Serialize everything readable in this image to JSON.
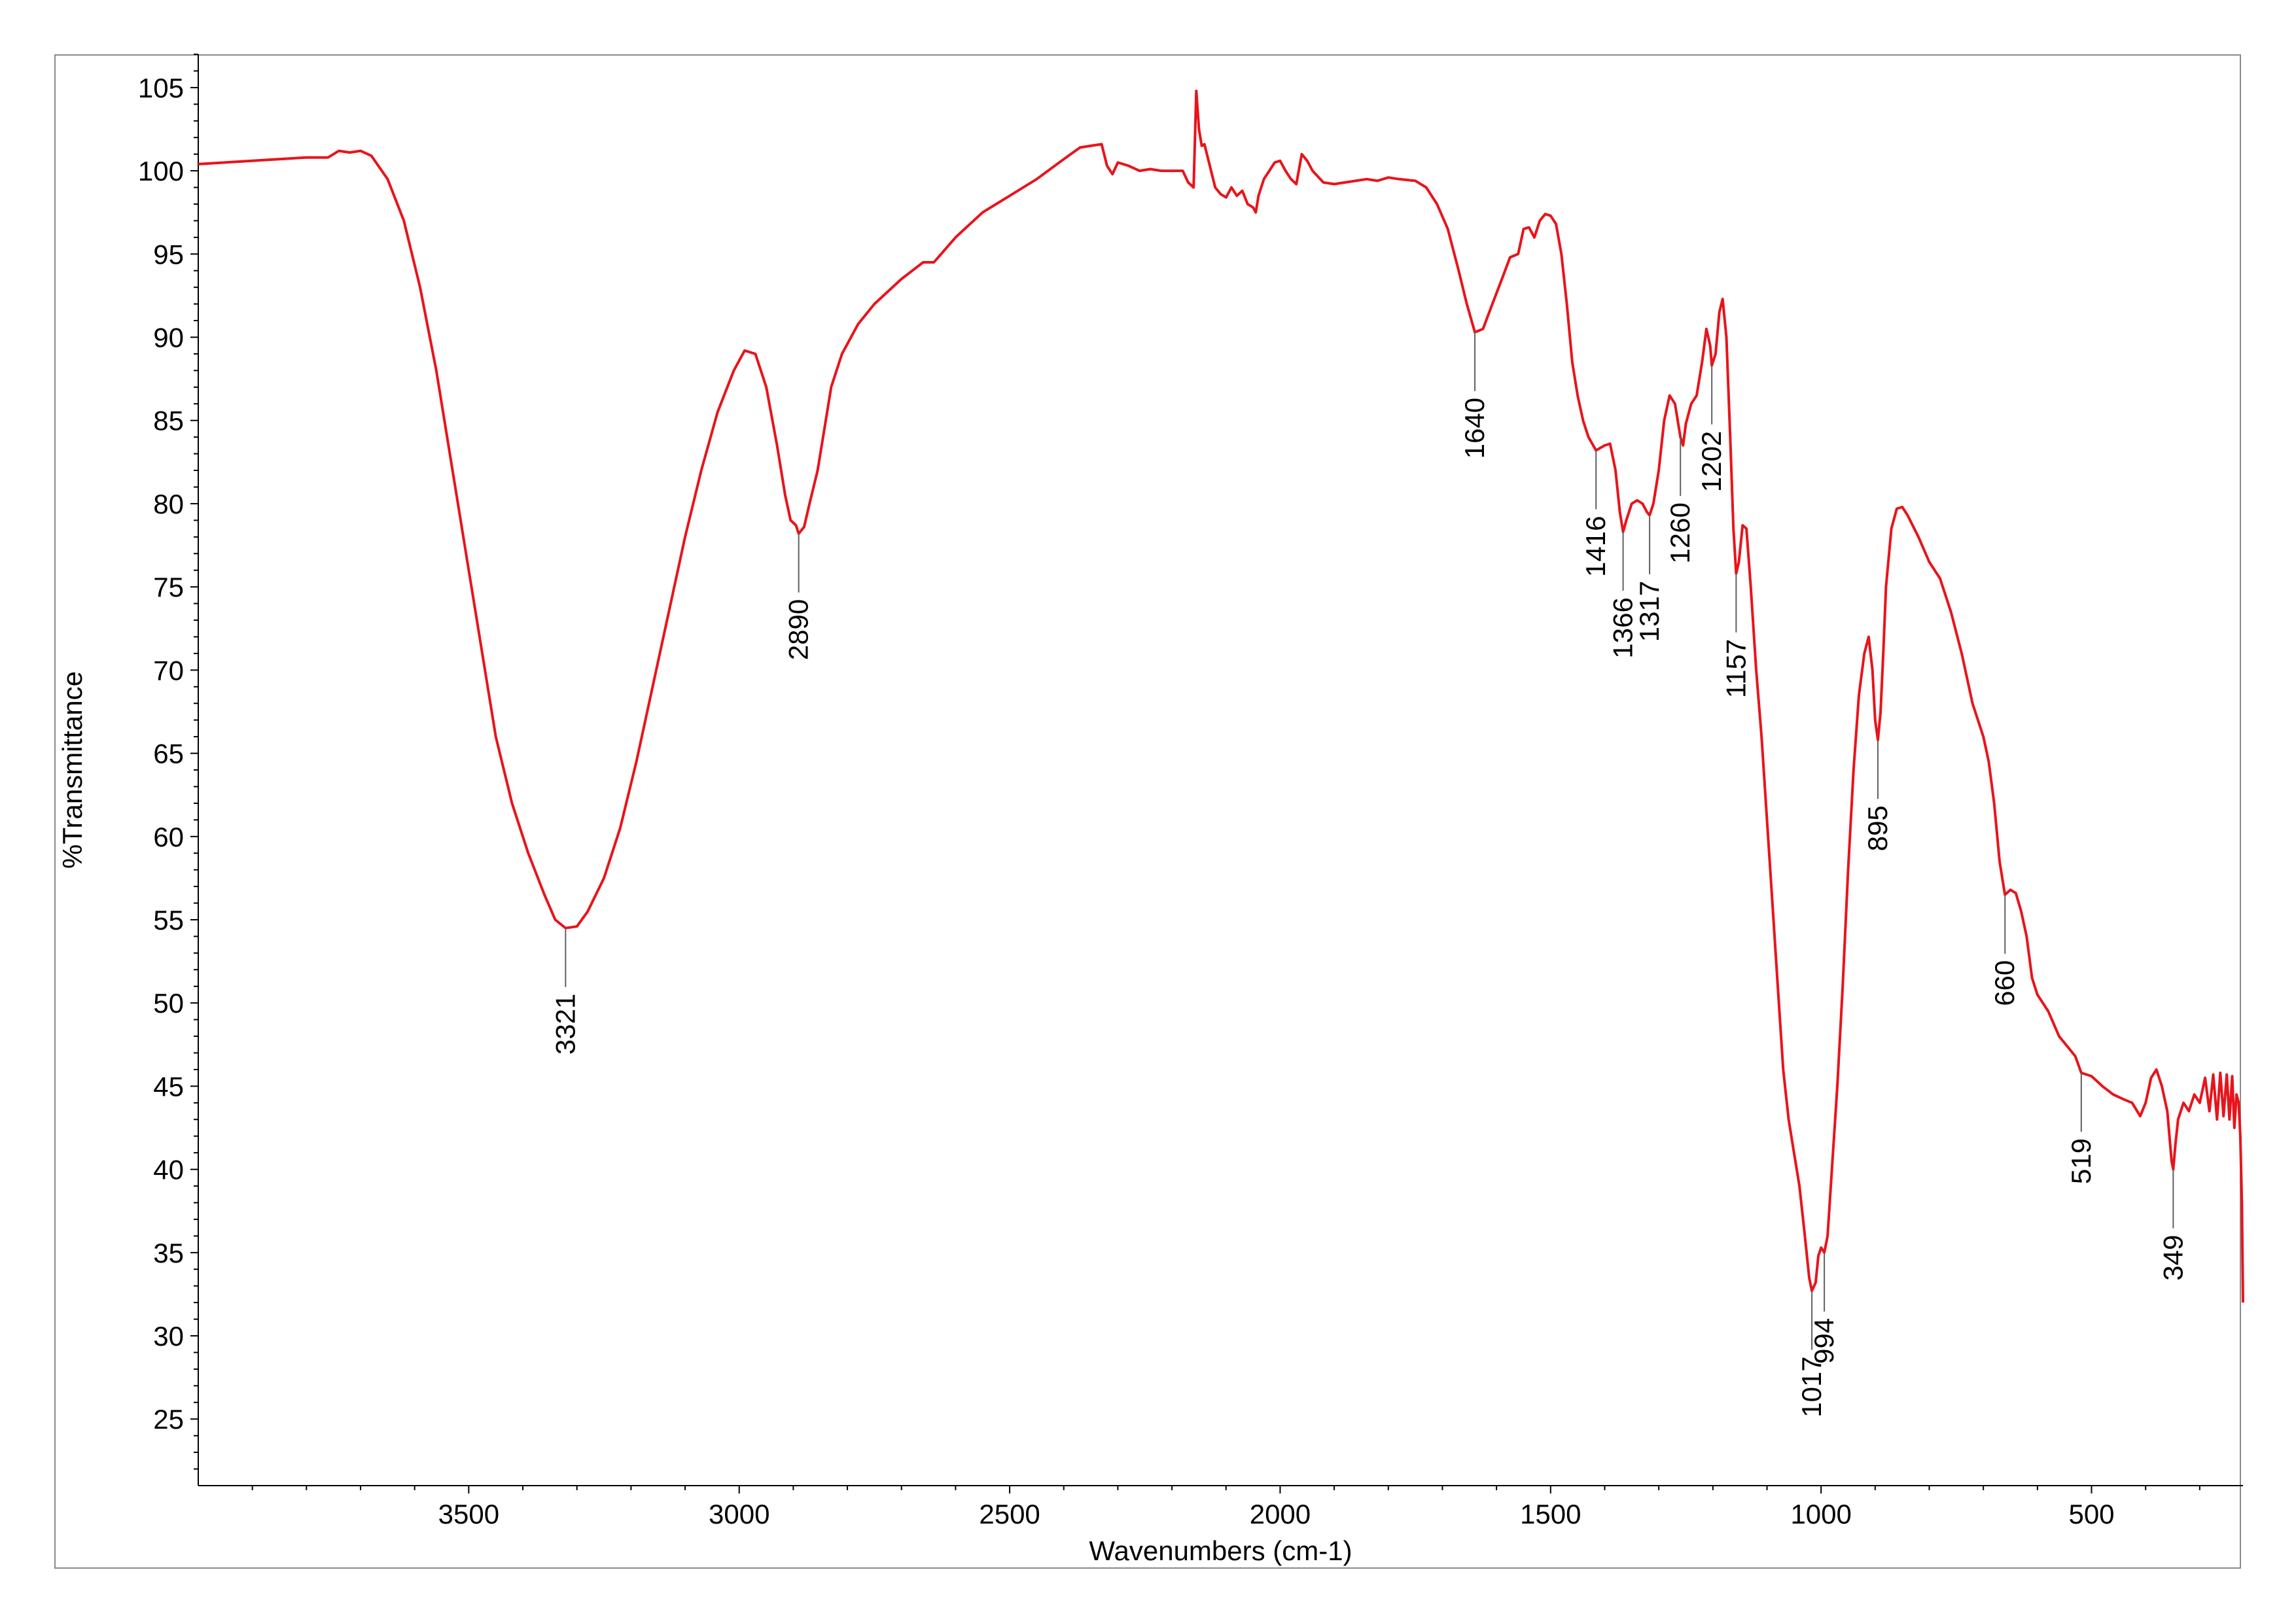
{
  "chart_data": {
    "type": "line",
    "title": "",
    "xlabel": "Wavenumbers (cm-1)",
    "ylabel": "%Transmittance",
    "xlim": [
      4000,
      220
    ],
    "ylim": [
      21,
      107
    ],
    "x_reversed": true,
    "grid": false,
    "x_ticks": [
      3500,
      3000,
      2500,
      2000,
      1500,
      1000,
      500
    ],
    "y_ticks": [
      25,
      30,
      35,
      40,
      45,
      50,
      55,
      60,
      65,
      70,
      75,
      80,
      85,
      90,
      95,
      100,
      105
    ],
    "series_color": "#e8141b",
    "peak_line_color": "#606060",
    "series": [
      {
        "points": [
          [
            4000,
            100.4
          ],
          [
            3900,
            100.6
          ],
          [
            3800,
            100.8
          ],
          [
            3760,
            100.8
          ],
          [
            3740,
            101.2
          ],
          [
            3720,
            101.1
          ],
          [
            3700,
            101.2
          ],
          [
            3680,
            100.9
          ],
          [
            3650,
            99.5
          ],
          [
            3620,
            97.0
          ],
          [
            3590,
            93.0
          ],
          [
            3560,
            88.0
          ],
          [
            3530,
            82.0
          ],
          [
            3500,
            76.0
          ],
          [
            3470,
            70.0
          ],
          [
            3450,
            66.0
          ],
          [
            3420,
            62.0
          ],
          [
            3390,
            59.0
          ],
          [
            3360,
            56.5
          ],
          [
            3340,
            55.0
          ],
          [
            3321,
            54.5
          ],
          [
            3300,
            54.6
          ],
          [
            3280,
            55.5
          ],
          [
            3250,
            57.5
          ],
          [
            3220,
            60.5
          ],
          [
            3190,
            64.5
          ],
          [
            3160,
            69.0
          ],
          [
            3130,
            73.5
          ],
          [
            3100,
            78.0
          ],
          [
            3070,
            82.0
          ],
          [
            3040,
            85.5
          ],
          [
            3010,
            88.0
          ],
          [
            2990,
            89.2
          ],
          [
            2970,
            89.0
          ],
          [
            2950,
            87.0
          ],
          [
            2930,
            83.5
          ],
          [
            2915,
            80.5
          ],
          [
            2905,
            79.0
          ],
          [
            2895,
            78.7
          ],
          [
            2890,
            78.2
          ],
          [
            2880,
            78.6
          ],
          [
            2870,
            80.0
          ],
          [
            2855,
            82.0
          ],
          [
            2845,
            84.0
          ],
          [
            2830,
            87.0
          ],
          [
            2810,
            89.0
          ],
          [
            2780,
            90.8
          ],
          [
            2750,
            92.0
          ],
          [
            2700,
            93.5
          ],
          [
            2660,
            94.5
          ],
          [
            2640,
            94.5
          ],
          [
            2600,
            96.0
          ],
          [
            2550,
            97.5
          ],
          [
            2500,
            98.5
          ],
          [
            2450,
            99.5
          ],
          [
            2400,
            100.7
          ],
          [
            2370,
            101.4
          ],
          [
            2350,
            101.5
          ],
          [
            2330,
            101.6
          ],
          [
            2320,
            100.3
          ],
          [
            2310,
            99.8
          ],
          [
            2300,
            100.5
          ],
          [
            2280,
            100.3
          ],
          [
            2260,
            100.0
          ],
          [
            2240,
            100.1
          ],
          [
            2220,
            100.0
          ],
          [
            2200,
            100.0
          ],
          [
            2180,
            100.0
          ],
          [
            2170,
            99.3
          ],
          [
            2160,
            99.0
          ],
          [
            2155,
            104.8
          ],
          [
            2150,
            102.5
          ],
          [
            2145,
            101.5
          ],
          [
            2140,
            101.6
          ],
          [
            2130,
            100.3
          ],
          [
            2120,
            99.0
          ],
          [
            2110,
            98.6
          ],
          [
            2100,
            98.4
          ],
          [
            2090,
            99.0
          ],
          [
            2080,
            98.5
          ],
          [
            2070,
            98.8
          ],
          [
            2060,
            98.0
          ],
          [
            2050,
            97.8
          ],
          [
            2045,
            97.5
          ],
          [
            2040,
            98.5
          ],
          [
            2030,
            99.5
          ],
          [
            2020,
            100.0
          ],
          [
            2010,
            100.5
          ],
          [
            2000,
            100.6
          ],
          [
            1990,
            100.0
          ],
          [
            1980,
            99.5
          ],
          [
            1970,
            99.2
          ],
          [
            1960,
            101.0
          ],
          [
            1950,
            100.6
          ],
          [
            1940,
            100.0
          ],
          [
            1920,
            99.3
          ],
          [
            1900,
            99.2
          ],
          [
            1880,
            99.3
          ],
          [
            1860,
            99.4
          ],
          [
            1840,
            99.5
          ],
          [
            1820,
            99.4
          ],
          [
            1800,
            99.6
          ],
          [
            1780,
            99.5
          ],
          [
            1750,
            99.4
          ],
          [
            1730,
            99.0
          ],
          [
            1710,
            98.0
          ],
          [
            1690,
            96.5
          ],
          [
            1670,
            94.0
          ],
          [
            1655,
            92.0
          ],
          [
            1640,
            90.3
          ],
          [
            1625,
            90.5
          ],
          [
            1610,
            91.8
          ],
          [
            1590,
            93.5
          ],
          [
            1575,
            94.8
          ],
          [
            1560,
            95.0
          ],
          [
            1550,
            96.5
          ],
          [
            1540,
            96.6
          ],
          [
            1530,
            96.0
          ],
          [
            1520,
            97.0
          ],
          [
            1510,
            97.4
          ],
          [
            1500,
            97.3
          ],
          [
            1490,
            96.8
          ],
          [
            1480,
            95.0
          ],
          [
            1470,
            92.0
          ],
          [
            1460,
            88.5
          ],
          [
            1450,
            86.5
          ],
          [
            1440,
            85.0
          ],
          [
            1430,
            84.0
          ],
          [
            1416,
            83.2
          ],
          [
            1400,
            83.5
          ],
          [
            1390,
            83.6
          ],
          [
            1380,
            82.0
          ],
          [
            1372,
            79.5
          ],
          [
            1366,
            78.3
          ],
          [
            1360,
            79.0
          ],
          [
            1350,
            80.0
          ],
          [
            1340,
            80.2
          ],
          [
            1330,
            80.0
          ],
          [
            1322,
            79.5
          ],
          [
            1317,
            79.3
          ],
          [
            1310,
            80.0
          ],
          [
            1300,
            82.0
          ],
          [
            1290,
            85.0
          ],
          [
            1280,
            86.5
          ],
          [
            1270,
            86.0
          ],
          [
            1260,
            84.0
          ],
          [
            1255,
            83.5
          ],
          [
            1250,
            84.8
          ],
          [
            1240,
            86.0
          ],
          [
            1230,
            86.5
          ],
          [
            1220,
            88.5
          ],
          [
            1212,
            90.5
          ],
          [
            1205,
            89.5
          ],
          [
            1202,
            88.3
          ],
          [
            1195,
            89.0
          ],
          [
            1188,
            91.5
          ],
          [
            1182,
            92.3
          ],
          [
            1175,
            90.0
          ],
          [
            1168,
            84.0
          ],
          [
            1162,
            78.5
          ],
          [
            1157,
            75.8
          ],
          [
            1152,
            76.5
          ],
          [
            1145,
            78.7
          ],
          [
            1138,
            78.5
          ],
          [
            1130,
            75.0
          ],
          [
            1120,
            70.0
          ],
          [
            1110,
            66.0
          ],
          [
            1100,
            61.0
          ],
          [
            1090,
            56.0
          ],
          [
            1080,
            51.0
          ],
          [
            1070,
            46.0
          ],
          [
            1060,
            43.0
          ],
          [
            1050,
            41.0
          ],
          [
            1040,
            39.0
          ],
          [
            1030,
            36.0
          ],
          [
            1022,
            33.5
          ],
          [
            1017,
            32.7
          ],
          [
            1010,
            33.2
          ],
          [
            1005,
            34.8
          ],
          [
            1000,
            35.3
          ],
          [
            994,
            35.0
          ],
          [
            988,
            36.0
          ],
          [
            980,
            40.0
          ],
          [
            970,
            45.0
          ],
          [
            960,
            51.0
          ],
          [
            950,
            58.0
          ],
          [
            940,
            64.0
          ],
          [
            930,
            68.5
          ],
          [
            920,
            71.0
          ],
          [
            912,
            72.0
          ],
          [
            905,
            70.0
          ],
          [
            900,
            67.0
          ],
          [
            895,
            65.8
          ],
          [
            890,
            67.5
          ],
          [
            885,
            71.0
          ],
          [
            880,
            75.0
          ],
          [
            870,
            78.5
          ],
          [
            860,
            79.7
          ],
          [
            850,
            79.8
          ],
          [
            840,
            79.3
          ],
          [
            820,
            78.0
          ],
          [
            800,
            76.5
          ],
          [
            780,
            75.5
          ],
          [
            760,
            73.5
          ],
          [
            740,
            71.0
          ],
          [
            720,
            68.0
          ],
          [
            700,
            66.0
          ],
          [
            690,
            64.5
          ],
          [
            680,
            62.0
          ],
          [
            670,
            58.5
          ],
          [
            660,
            56.5
          ],
          [
            650,
            56.8
          ],
          [
            640,
            56.6
          ],
          [
            630,
            55.5
          ],
          [
            620,
            54.0
          ],
          [
            610,
            51.5
          ],
          [
            600,
            50.5
          ],
          [
            580,
            49.5
          ],
          [
            560,
            48.0
          ],
          [
            540,
            47.2
          ],
          [
            530,
            46.8
          ],
          [
            519,
            45.8
          ],
          [
            500,
            45.6
          ],
          [
            480,
            45.0
          ],
          [
            460,
            44.5
          ],
          [
            440,
            44.2
          ],
          [
            425,
            44.0
          ],
          [
            410,
            43.2
          ],
          [
            400,
            44.0
          ],
          [
            390,
            45.5
          ],
          [
            380,
            46.0
          ],
          [
            370,
            45.0
          ],
          [
            360,
            43.5
          ],
          [
            352,
            40.5
          ],
          [
            349,
            40.0
          ],
          [
            345,
            41.5
          ],
          [
            340,
            43.0
          ],
          [
            330,
            44.0
          ],
          [
            320,
            43.5
          ],
          [
            310,
            44.5
          ],
          [
            300,
            44.0
          ],
          [
            290,
            45.5
          ],
          [
            282,
            43.5
          ],
          [
            275,
            45.7
          ],
          [
            268,
            43.0
          ],
          [
            262,
            45.8
          ],
          [
            256,
            43.2
          ],
          [
            250,
            45.7
          ],
          [
            245,
            43.0
          ],
          [
            240,
            45.6
          ],
          [
            236,
            42.5
          ],
          [
            232,
            44.5
          ],
          [
            228,
            44.0
          ],
          [
            225,
            42.0
          ],
          [
            222,
            38.0
          ],
          [
            220,
            32.0
          ]
        ]
      }
    ],
    "peak_labels": [
      {
        "x": 3321,
        "y": 54.5,
        "text": "3321"
      },
      {
        "x": 2890,
        "y": 78.2,
        "text": "2890"
      },
      {
        "x": 1640,
        "y": 90.3,
        "text": "1640"
      },
      {
        "x": 1416,
        "y": 83.2,
        "text": "1416"
      },
      {
        "x": 1366,
        "y": 78.3,
        "text": "1366"
      },
      {
        "x": 1317,
        "y": 79.3,
        "text": "1317"
      },
      {
        "x": 1260,
        "y": 84.0,
        "text": "1260"
      },
      {
        "x": 1202,
        "y": 88.3,
        "text": "1202"
      },
      {
        "x": 1157,
        "y": 75.8,
        "text": "1157"
      },
      {
        "x": 1017,
        "y": 32.7,
        "text": "1017"
      },
      {
        "x": 994,
        "y": 35.0,
        "text": "994"
      },
      {
        "x": 895,
        "y": 65.8,
        "text": "895"
      },
      {
        "x": 660,
        "y": 56.5,
        "text": "660"
      },
      {
        "x": 519,
        "y": 45.8,
        "text": "519"
      },
      {
        "x": 349,
        "y": 40.0,
        "text": "349"
      }
    ]
  }
}
